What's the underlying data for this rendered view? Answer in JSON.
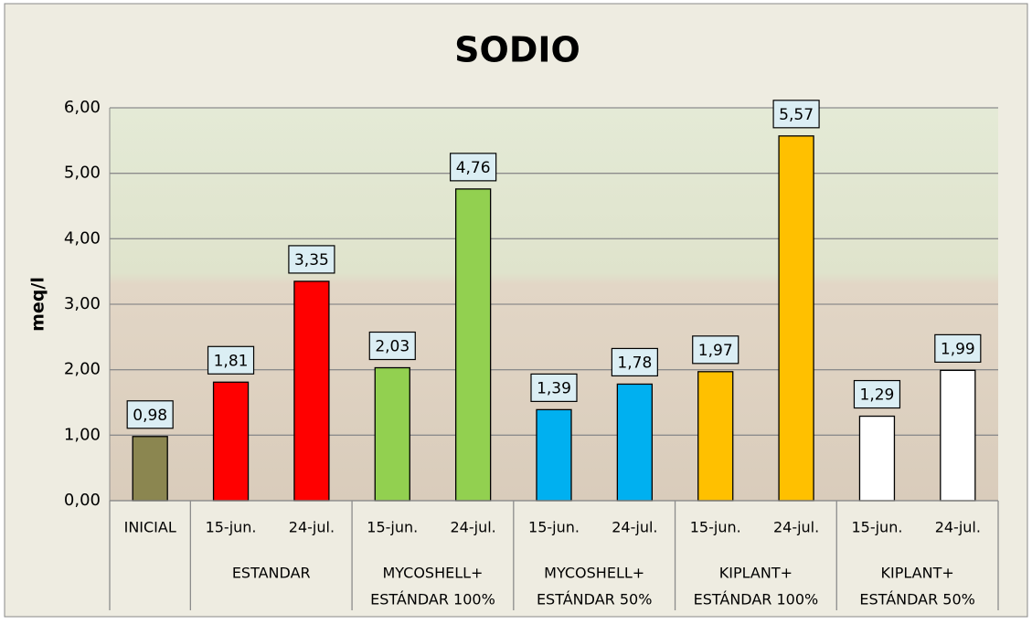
{
  "chart_data": {
    "type": "bar",
    "title": "SODIO",
    "y_label": "meq/l",
    "ylim": [
      0,
      6
    ],
    "yticks": [
      {
        "value": 0,
        "label": "0,00"
      },
      {
        "value": 1,
        "label": "1,00"
      },
      {
        "value": 2,
        "label": "2,00"
      },
      {
        "value": 3,
        "label": "3,00"
      },
      {
        "value": 4,
        "label": "4,00"
      },
      {
        "value": 5,
        "label": "5,00"
      },
      {
        "value": 6,
        "label": "6,00"
      }
    ],
    "grid": true,
    "groups": [
      {
        "name": null,
        "color": "#8b8650",
        "categories": [
          "INICIAL"
        ],
        "values": [
          0.98
        ],
        "value_labels": [
          "0,98"
        ]
      },
      {
        "name": [
          "ESTANDAR"
        ],
        "color": "#ff0000",
        "categories": [
          "15-jun.",
          "24-jul."
        ],
        "values": [
          1.81,
          3.35
        ],
        "value_labels": [
          "1,81",
          "3,35"
        ]
      },
      {
        "name": [
          "MYCOSHELL+",
          "ESTÁNDAR 100%"
        ],
        "color": "#92d050",
        "categories": [
          "15-jun.",
          "24-jul."
        ],
        "values": [
          2.03,
          4.76
        ],
        "value_labels": [
          "2,03",
          "4,76"
        ]
      },
      {
        "name": [
          "MYCOSHELL+",
          "ESTÁNDAR 50%"
        ],
        "color": "#00b0f0",
        "categories": [
          "15-jun.",
          "24-jul."
        ],
        "values": [
          1.39,
          1.78
        ],
        "value_labels": [
          "1,39",
          "1,78"
        ]
      },
      {
        "name": [
          "KIPLANT+",
          "ESTÁNDAR 100%"
        ],
        "color": "#ffc000",
        "categories": [
          "15-jun.",
          "24-jul."
        ],
        "values": [
          1.97,
          5.57
        ],
        "value_labels": [
          "1,97",
          "5,57"
        ]
      },
      {
        "name": [
          "KIPLANT+",
          "ESTÁNDAR 50%"
        ],
        "color": "#ffffff",
        "categories": [
          "15-jun.",
          "24-jul."
        ],
        "values": [
          1.29,
          1.99
        ],
        "value_labels": [
          "1,29",
          "1,99"
        ]
      }
    ]
  }
}
